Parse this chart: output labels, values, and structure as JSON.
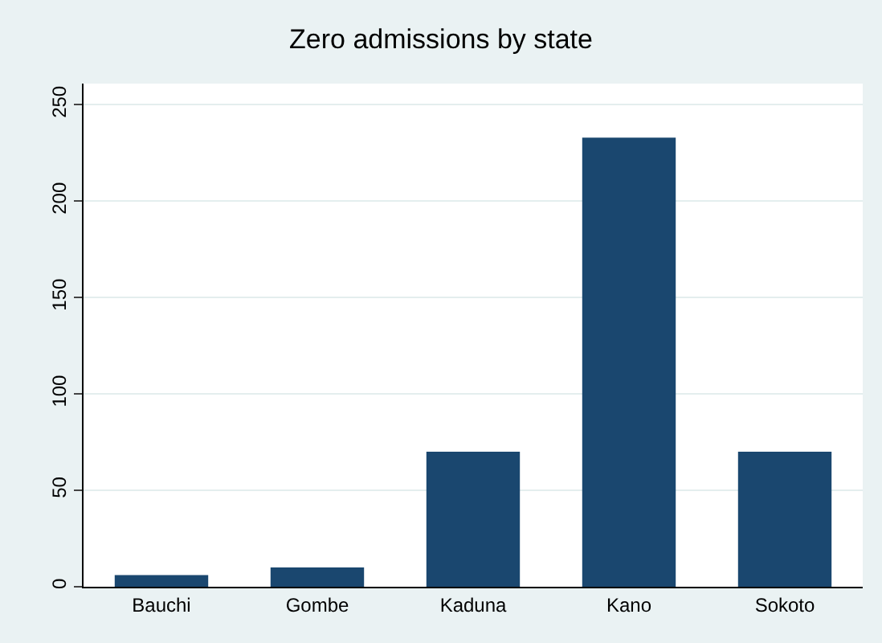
{
  "chart_data": {
    "type": "bar",
    "title": "Zero admissions by state",
    "categories": [
      "Bauchi",
      "Gombe",
      "Kaduna",
      "Kano",
      "Sokoto"
    ],
    "values": [
      6,
      10,
      70,
      233,
      70
    ],
    "color": "#1a476f",
    "ylim": [
      0,
      261
    ],
    "yticks": [
      0,
      50,
      100,
      150,
      200,
      250
    ],
    "grid": "y"
  }
}
